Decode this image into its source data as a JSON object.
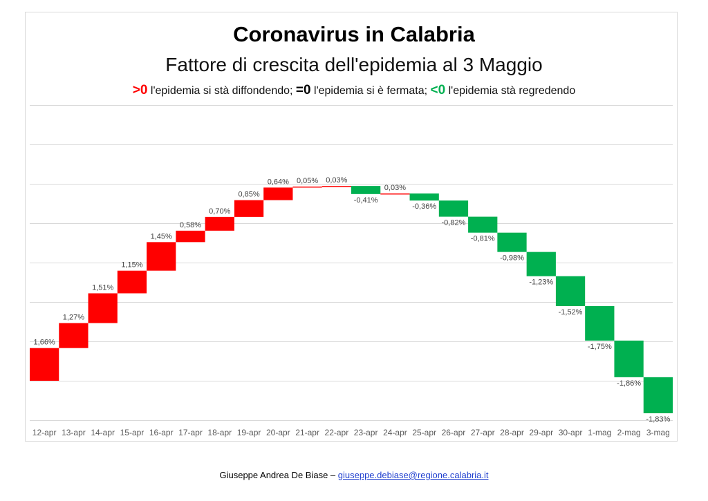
{
  "header": {
    "title": "Coronavirus in Calabria",
    "subtitle": "Fattore di crescita dell'epidemia al 3 Maggio",
    "legend": {
      "pos_symbol": ">0",
      "pos_text": " l'epidemia si stà diffondendo; ",
      "zero_symbol": "=0",
      "zero_text": " l'epidemia si è fermata; ",
      "neg_symbol": "<0",
      "neg_text": " l'epidemia stà regredendo"
    }
  },
  "colors": {
    "increase": "#ff0000",
    "decrease": "#00b050",
    "grid": "#d9d9d9",
    "axis_text": "#595959"
  },
  "chart_data": {
    "type": "bar",
    "subtype": "waterfall",
    "title": "Coronavirus in Calabria",
    "subtitle": "Fattore di crescita dell'epidemia al 3 Maggio",
    "categories": [
      "12-apr",
      "13-apr",
      "14-apr",
      "15-apr",
      "16-apr",
      "17-apr",
      "18-apr",
      "19-apr",
      "20-apr",
      "21-apr",
      "22-apr",
      "23-apr",
      "24-apr",
      "25-apr",
      "26-apr",
      "27-apr",
      "28-apr",
      "29-apr",
      "30-apr",
      "1-mag",
      "2-mag",
      "3-mag"
    ],
    "values": [
      1.66,
      1.27,
      1.51,
      1.15,
      1.45,
      0.58,
      0.7,
      0.85,
      0.64,
      0.05,
      0.03,
      -0.41,
      0.03,
      -0.36,
      -0.82,
      -0.81,
      -0.98,
      -1.23,
      -1.52,
      -1.75,
      -1.86,
      -1.83
    ],
    "value_labels": [
      "1,66%",
      "1,27%",
      "1,51%",
      "1,15%",
      "1,45%",
      "0,58%",
      "0,70%",
      "0,85%",
      "0,64%",
      "0,05%",
      "0,03%",
      "-0,41%",
      "0,03%",
      "-0,36%",
      "-0,82%",
      "-0,81%",
      "-0,98%",
      "-1,23%",
      "-1,52%",
      "-1,75%",
      "-1,86%",
      "-1,83%"
    ],
    "ylim": [
      -2.0,
      14.0
    ],
    "grid": true,
    "xlabel": "",
    "ylabel": ""
  },
  "footer": {
    "author": "Giuseppe Andrea De Biase – ",
    "email": "giuseppe.debiase@regione.calabria.it"
  }
}
